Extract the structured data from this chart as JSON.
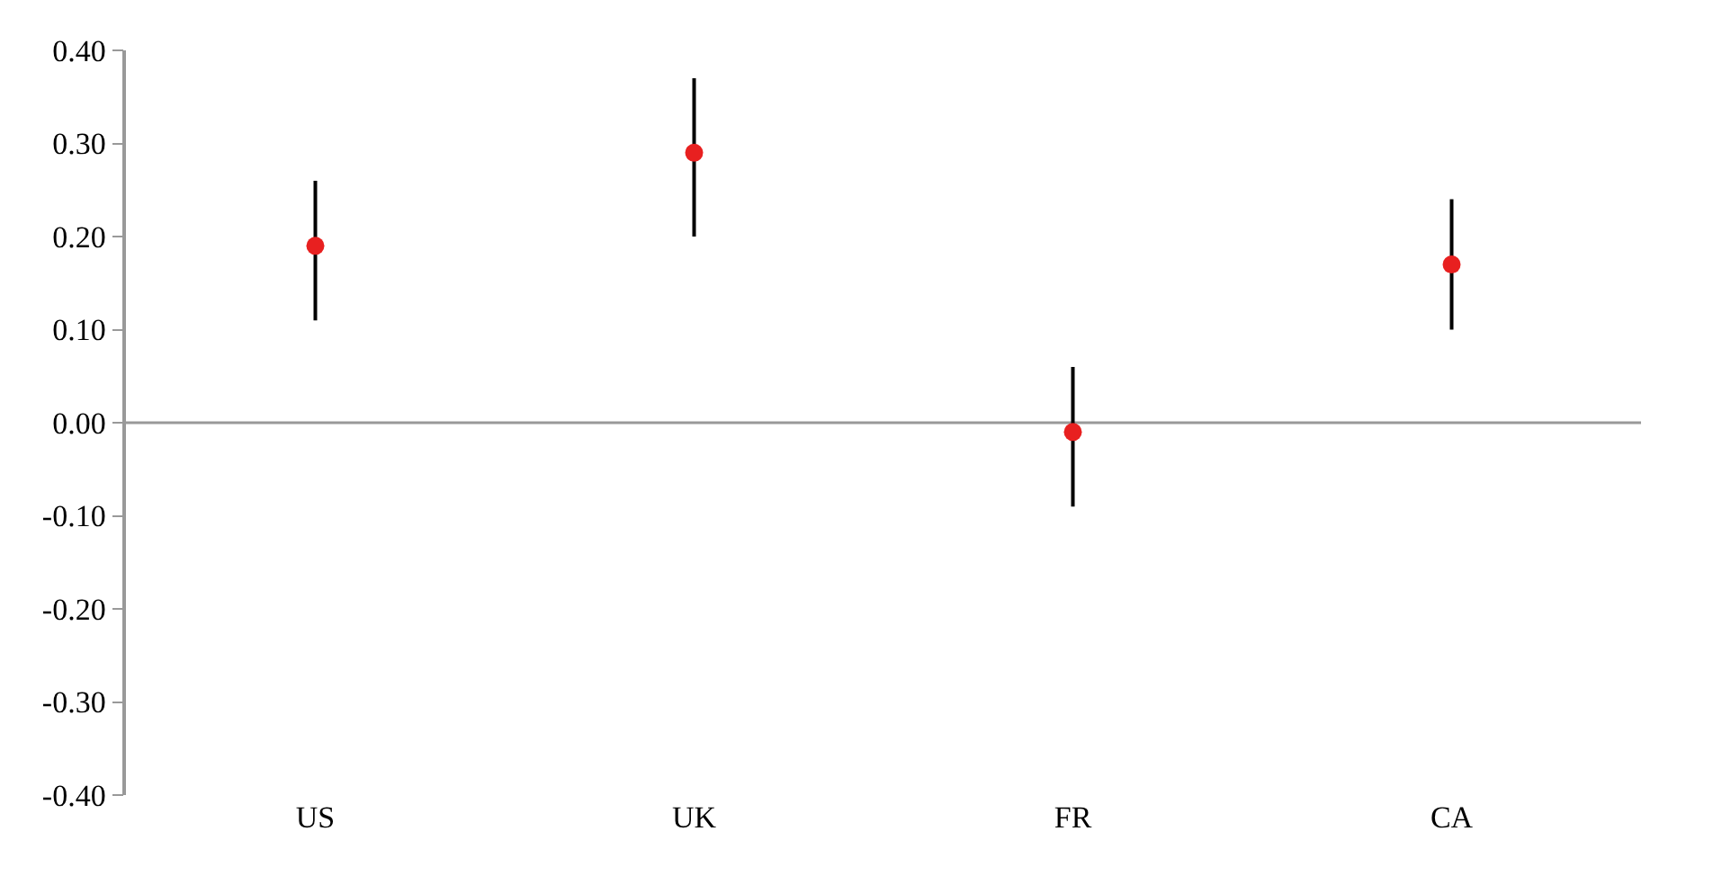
{
  "chart_data": {
    "type": "scatter",
    "categories": [
      "US",
      "UK",
      "FR",
      "CA"
    ],
    "series": [
      {
        "color": "#e82020",
        "values": [
          0.19,
          0.29,
          -0.01,
          0.17
        ],
        "errors": [
          [
            0.11,
            0.26
          ],
          [
            0.2,
            0.37
          ],
          [
            -0.09,
            0.06
          ],
          [
            0.1,
            0.24
          ]
        ]
      }
    ],
    "ylim": [
      -0.4,
      0.4
    ],
    "yticks": [
      {
        "value": 0.4,
        "label": "0.40"
      },
      {
        "value": 0.3,
        "label": "0.30"
      },
      {
        "value": 0.2,
        "label": "0.20"
      },
      {
        "value": 0.1,
        "label": "0.10"
      },
      {
        "value": 0,
        "label": "0.00"
      },
      {
        "value": -0.1,
        "label": "-0.10"
      },
      {
        "value": -0.2,
        "label": "-0.20"
      },
      {
        "value": -0.3,
        "label": "-0.30"
      },
      {
        "value": -0.4,
        "label": "-0.40"
      }
    ],
    "ref_lines": [
      {
        "axis": "y",
        "value": 0,
        "color": "#999999"
      }
    ],
    "marker": "circle"
  }
}
